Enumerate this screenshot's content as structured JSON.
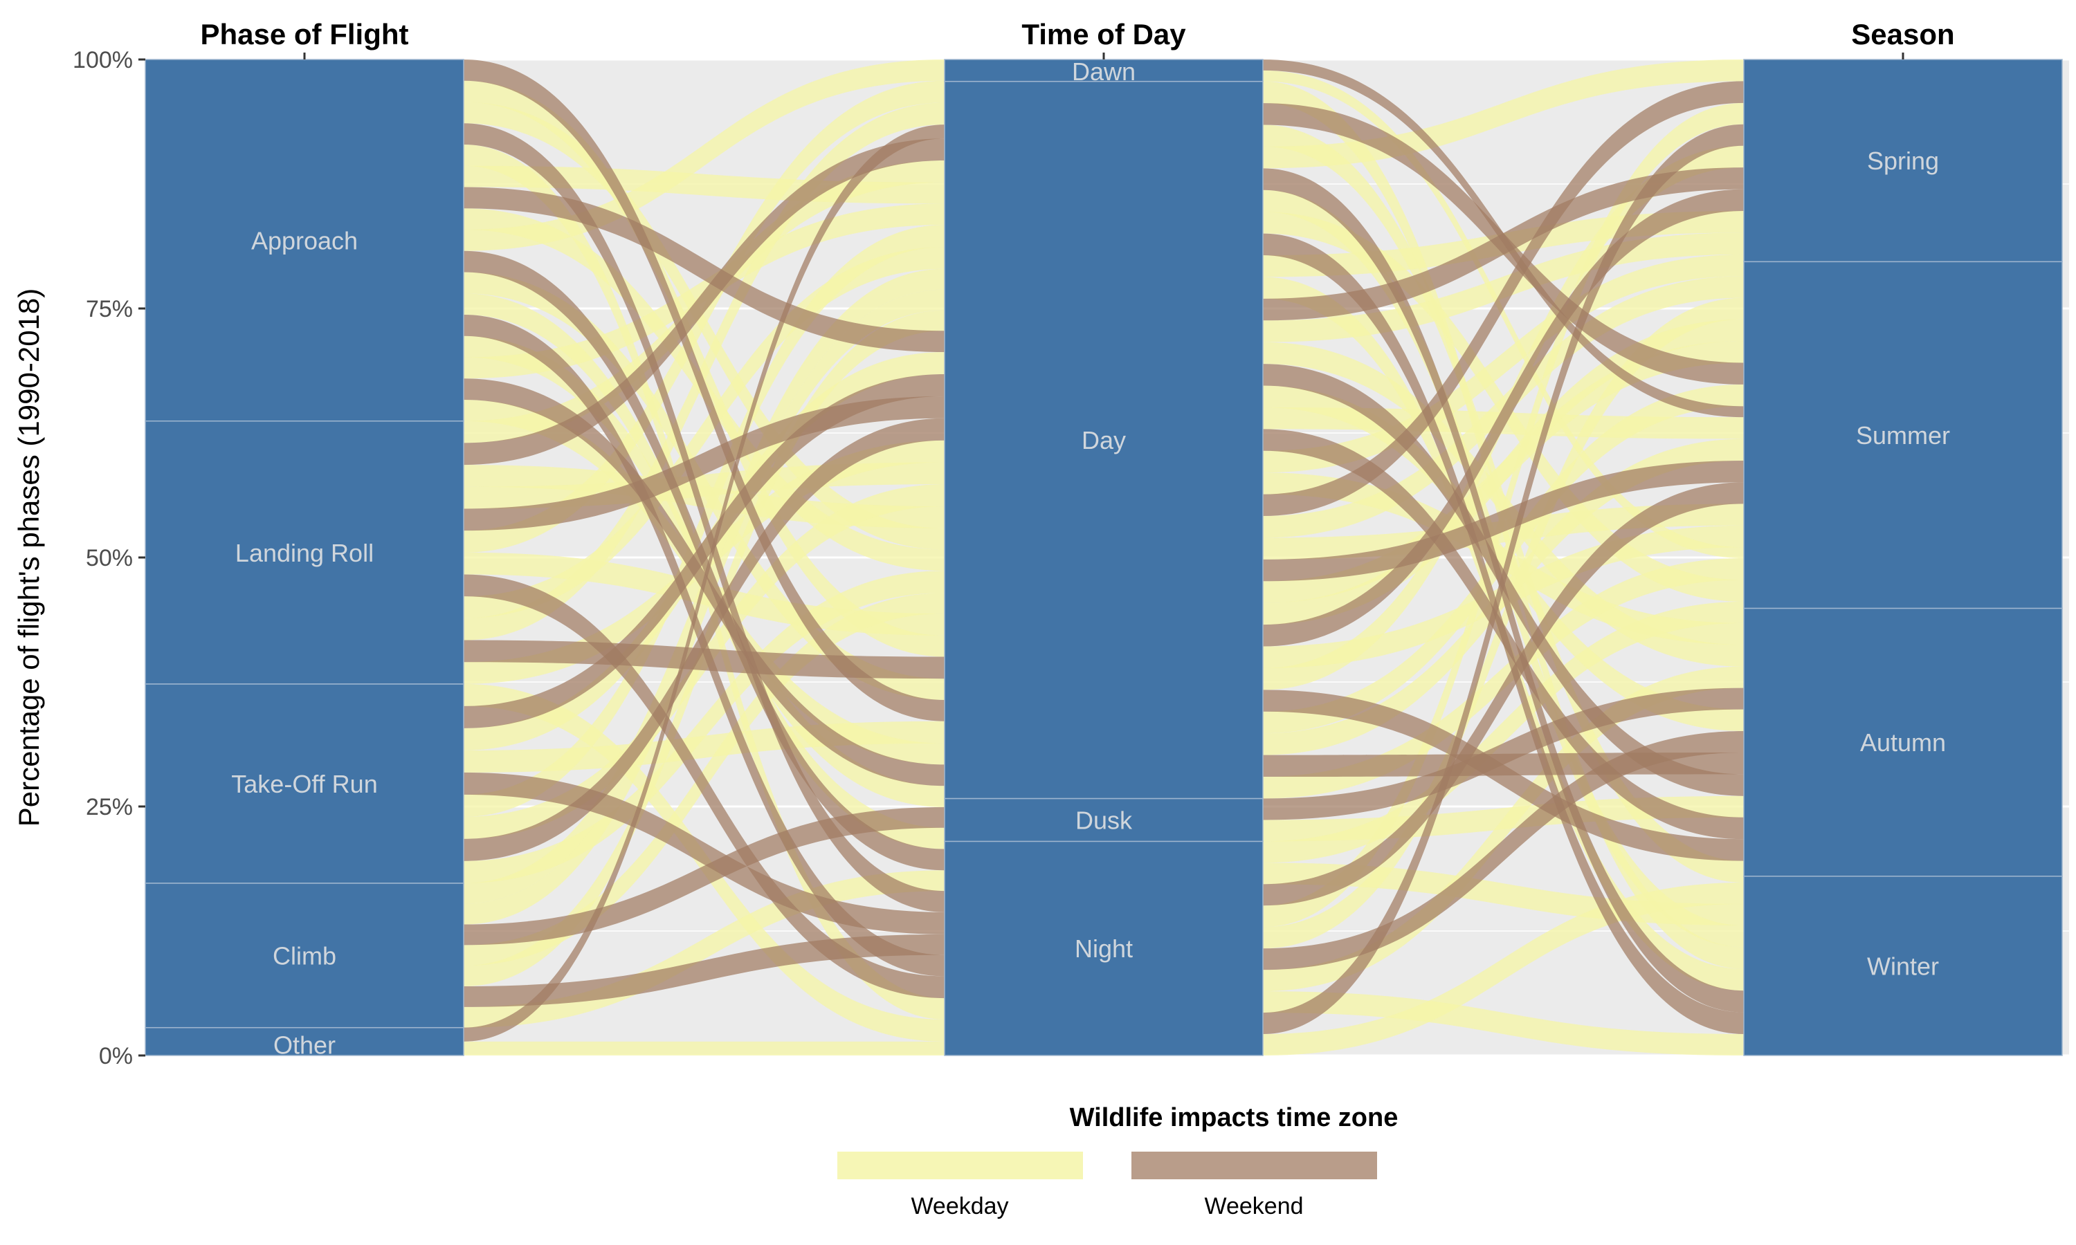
{
  "chart_data": {
    "type": "alluvial",
    "ylabel": "Percentage of flight's phases (1990-2018)",
    "y_ticks": [
      "0%",
      "25%",
      "50%",
      "75%",
      "100%"
    ],
    "y_tick_values": [
      0,
      25,
      50,
      75,
      100
    ],
    "ylim": [
      0,
      100
    ],
    "grid": true,
    "legend_position": "bottom",
    "colors": {
      "panel_bg": "#ebebeb",
      "grid": "#ffffff",
      "stratum": "#4274a6",
      "stratum_line": "#9fb6cf",
      "weekday": "#f5f5a8",
      "weekend": "#a17c63"
    },
    "axes": [
      {
        "name": "Phase of Flight",
        "strata": [
          {
            "label": "Other",
            "value": 2.8
          },
          {
            "label": "Climb",
            "value": 14.5
          },
          {
            "label": "Take-Off Run",
            "value": 20.0
          },
          {
            "label": "Landing Roll",
            "value": 26.4
          },
          {
            "label": "Approach",
            "value": 36.3
          }
        ]
      },
      {
        "name": "Time of Day",
        "strata": [
          {
            "label": "Night",
            "value": 21.5
          },
          {
            "label": "Dusk",
            "value": 4.3
          },
          {
            "label": "Day",
            "value": 72.0
          },
          {
            "label": "Dawn",
            "value": 2.2
          }
        ]
      },
      {
        "name": "Season",
        "strata": [
          {
            "label": "Winter",
            "value": 18.0
          },
          {
            "label": "Autumn",
            "value": 26.9
          },
          {
            "label": "Summer",
            "value": 34.8
          },
          {
            "label": "Spring",
            "value": 20.3
          }
        ]
      }
    ],
    "legend": {
      "title": "Wildlife impacts time zone",
      "entries": [
        {
          "label": "Weekday",
          "color": "#f5f5a8"
        },
        {
          "label": "Weekend",
          "color": "#a17c63"
        }
      ]
    }
  }
}
